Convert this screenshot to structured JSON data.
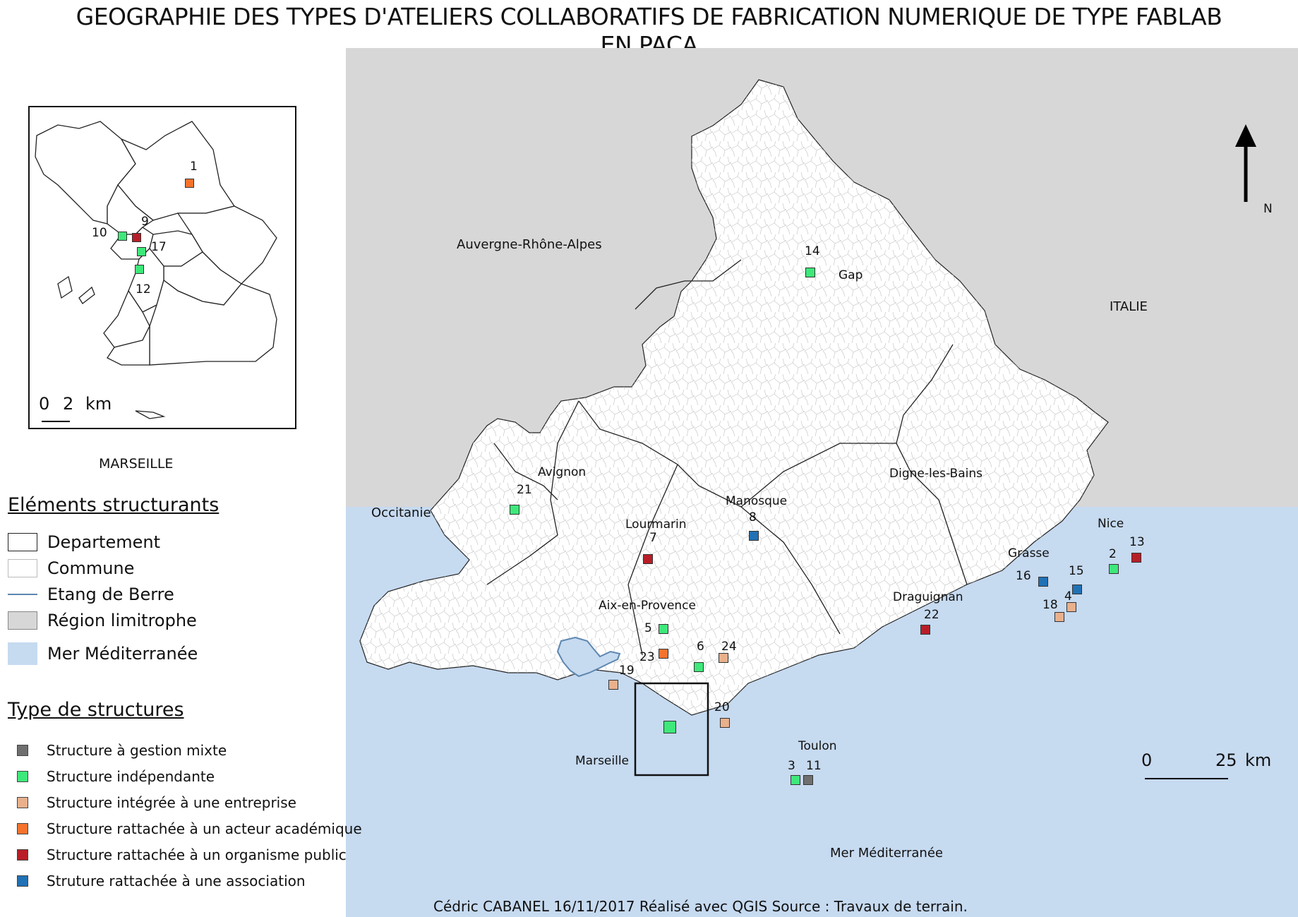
{
  "title": {
    "line1": "GEOGRAPHIE DES TYPES D'ATELIERS COLLABORATIFS DE FABRICATION NUMERIQUE DE TYPE FABLAB",
    "line2": "EN PACA"
  },
  "colors": {
    "mixte": "#6f6f6f",
    "independante": "#3ee87a",
    "entreprise": "#e9b08c",
    "academique": "#f5732c",
    "public": "#b81e28",
    "association": "#2171b5",
    "sea": "#c6daf0",
    "neighbor": "#d7d7d7",
    "etang": "#5d87b0"
  },
  "map": {
    "regions": [
      {
        "name": "Auvergne-Rhône-Alpes"
      },
      {
        "name": "ITALIE"
      },
      {
        "name": "Occitanie"
      },
      {
        "name": "Mer Méditerranée"
      }
    ],
    "cities": [
      {
        "name": "Gap"
      },
      {
        "name": "Avignon"
      },
      {
        "name": "Digne-les-Bains"
      },
      {
        "name": "Manosque"
      },
      {
        "name": "Lourmarin"
      },
      {
        "name": "Nice"
      },
      {
        "name": "Grasse"
      },
      {
        "name": "Draguignan"
      },
      {
        "name": "Aix-en-Provence"
      },
      {
        "name": "Marseille"
      },
      {
        "name": "Toulon"
      }
    ],
    "fablabs": [
      {
        "id": "14",
        "type": "independante"
      },
      {
        "id": "21",
        "type": "independante"
      },
      {
        "id": "8",
        "type": "association"
      },
      {
        "id": "7",
        "type": "public"
      },
      {
        "id": "2",
        "type": "independante"
      },
      {
        "id": "13",
        "type": "public"
      },
      {
        "id": "16",
        "type": "association"
      },
      {
        "id": "15",
        "type": "association"
      },
      {
        "id": "4",
        "type": "entreprise"
      },
      {
        "id": "18",
        "type": "entreprise"
      },
      {
        "id": "22",
        "type": "public"
      },
      {
        "id": "5",
        "type": "independante"
      },
      {
        "id": "23",
        "type": "academique"
      },
      {
        "id": "6",
        "type": "independante"
      },
      {
        "id": "24",
        "type": "entreprise"
      },
      {
        "id": "19",
        "type": "entreprise"
      },
      {
        "id": "20",
        "type": "entreprise"
      },
      {
        "id": "3",
        "type": "independante"
      },
      {
        "id": "11",
        "type": "mixte"
      }
    ],
    "north": "N",
    "scale": {
      "start": "0",
      "end": "25",
      "unit": "km"
    }
  },
  "inset": {
    "caption": "MARSEILLE",
    "scale": {
      "start": "0",
      "end": "2",
      "unit": "km"
    },
    "fablabs": [
      {
        "id": "1",
        "type": "academique"
      },
      {
        "id": "9",
        "type": "public"
      },
      {
        "id": "10",
        "type": "independante"
      },
      {
        "id": "17",
        "type": "independante"
      },
      {
        "id": "12",
        "type": "independante"
      }
    ]
  },
  "legend": {
    "structural_title": "Eléments structurants",
    "structural": [
      {
        "label": "Departement"
      },
      {
        "label": "Commune"
      },
      {
        "label": "Etang de Berre"
      },
      {
        "label": "Région limitrophe"
      },
      {
        "label": "Mer Méditerranée"
      }
    ],
    "types_title": "Type de structures",
    "types": [
      {
        "key": "mixte",
        "label": "Structure à gestion mixte"
      },
      {
        "key": "independante",
        "label": "Structure indépendante"
      },
      {
        "key": "entreprise",
        "label": "Structure intégrée à une entreprise"
      },
      {
        "key": "academique",
        "label": "Structure rattachée à un acteur académique"
      },
      {
        "key": "public",
        "label": "Structure rattachée à un organisme public"
      },
      {
        "key": "association",
        "label": "Struture rattachée à une association"
      }
    ]
  },
  "footer": "Cédric CABANEL    16/11/2017    Réalisé avec QGIS    Source : Travaux de terrain."
}
